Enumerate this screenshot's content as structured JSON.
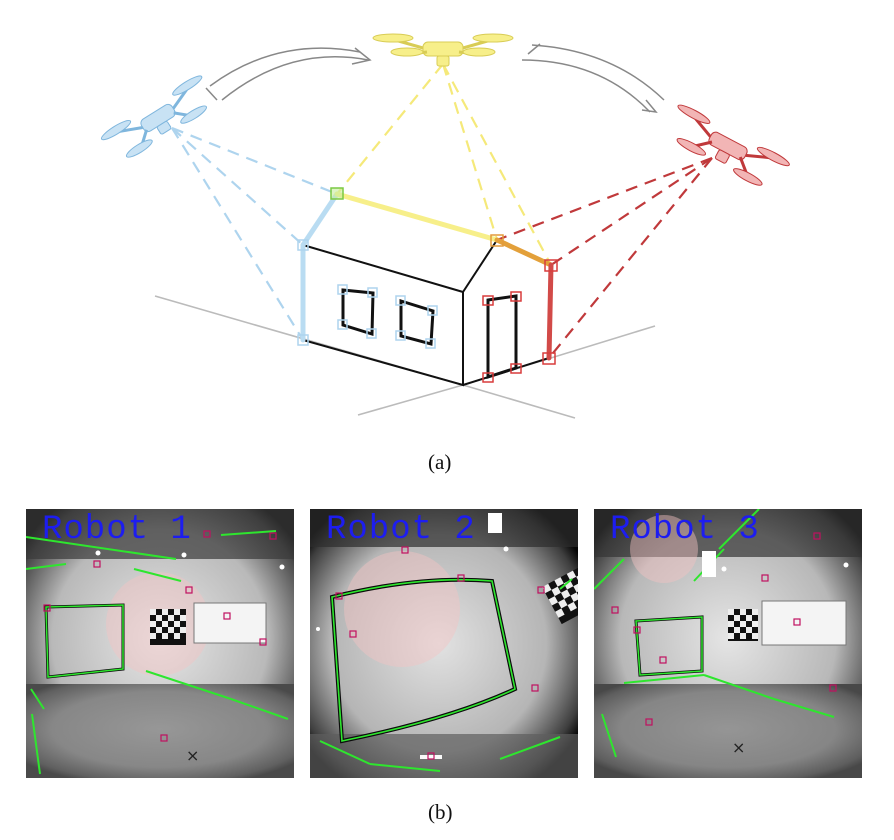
{
  "figure": {
    "caption_a": "(a)",
    "caption_b": "(b)"
  },
  "colors": {
    "drone_1": "#aed4ee",
    "drone_2": "#f7ef8a",
    "drone_3": "#e88080",
    "shared_feature": "#7ac943",
    "red_feature": "#d83c3c",
    "house_line": "#111111",
    "label": "#1d1df0",
    "detected_line": "#22e622"
  },
  "panels": [
    {
      "label": "Robot 1"
    },
    {
      "label": "Robot 2"
    },
    {
      "label": "Robot 3"
    }
  ]
}
